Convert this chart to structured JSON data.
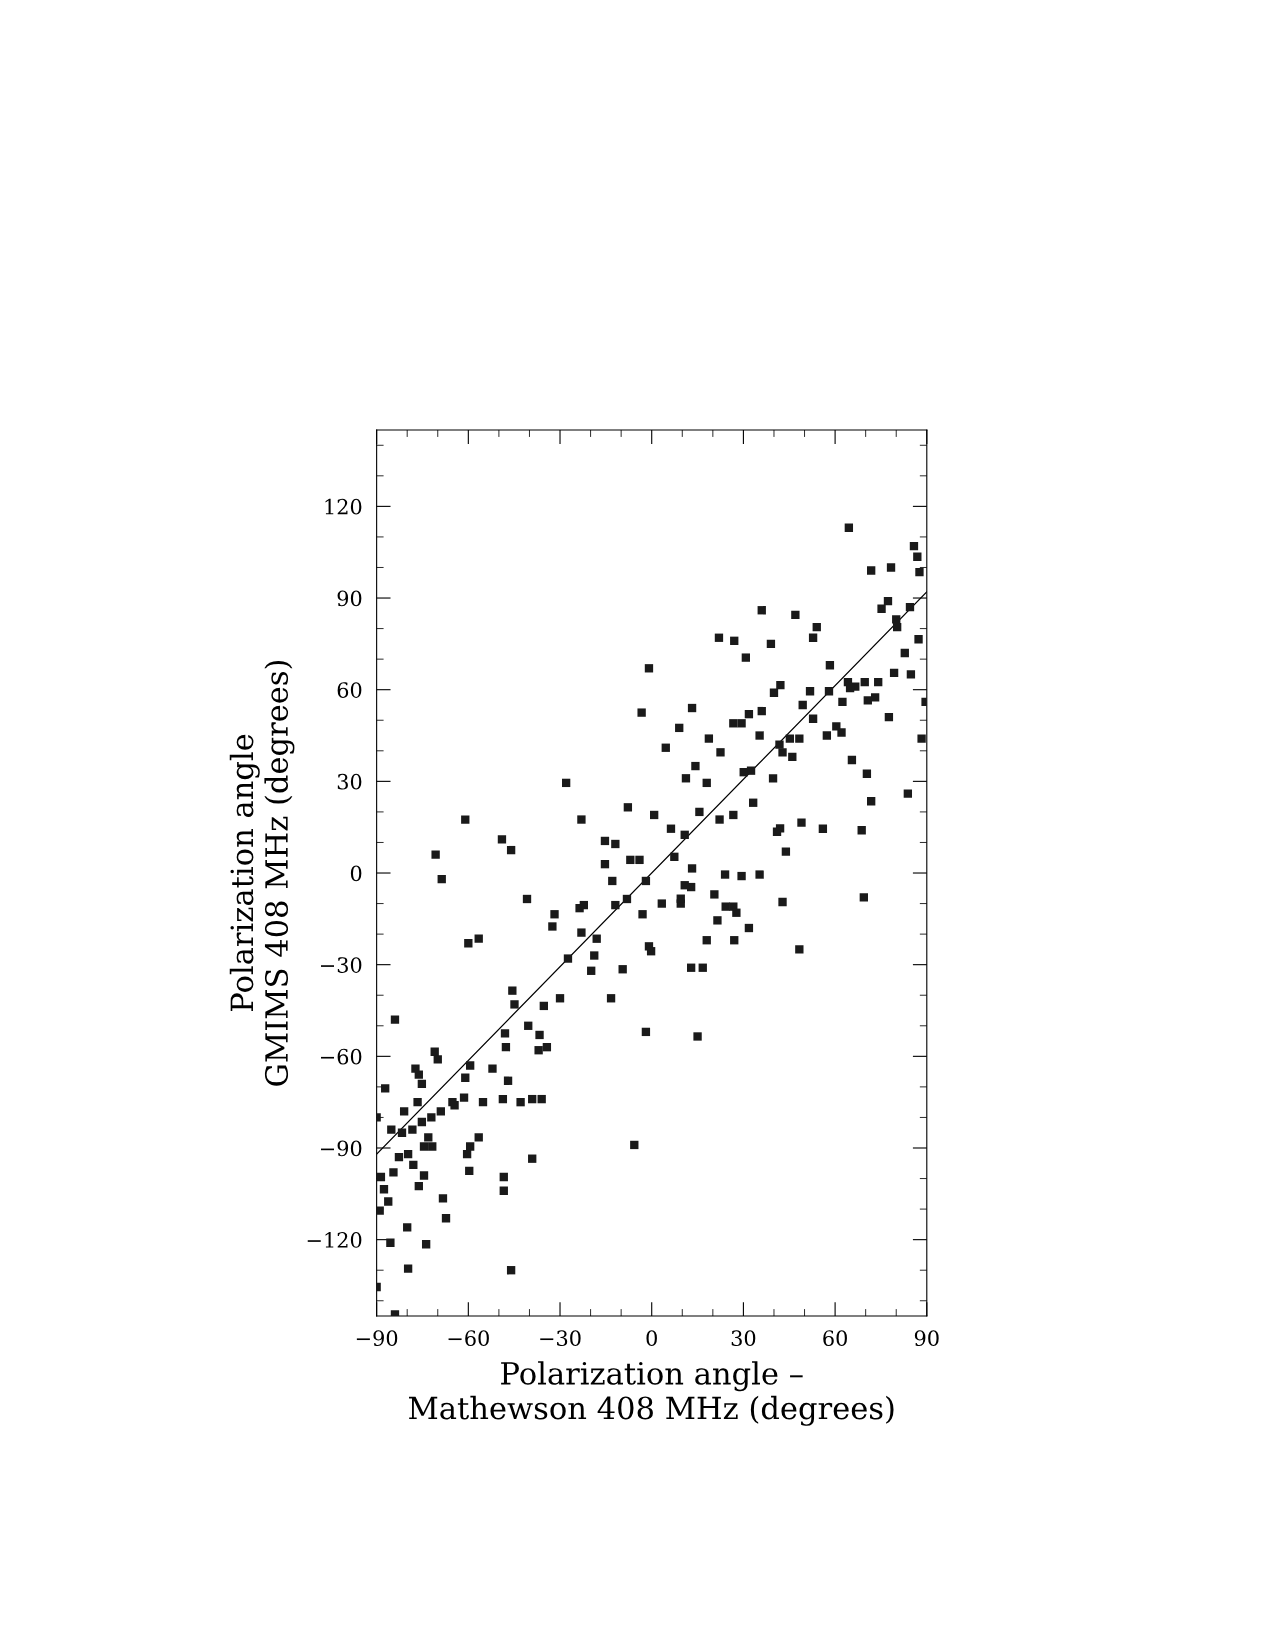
{
  "chart_data": {
    "type": "scatter",
    "xlabel": "Polarization angle –\nMathewson 408 MHz (degrees)",
    "ylabel": "Polarization angle\nGMIMS 408 MHz (degrees)",
    "xlim": [
      -90,
      90
    ],
    "ylim": [
      -145,
      145
    ],
    "xticks": [
      {
        "value": -90,
        "label": "−90"
      },
      {
        "value": -60,
        "label": "−60"
      },
      {
        "value": -30,
        "label": "−30"
      },
      0,
      30,
      60,
      90
    ],
    "yticks": [
      {
        "value": -120,
        "label": "−120"
      },
      {
        "value": -90,
        "label": "−90"
      },
      {
        "value": -60,
        "label": "−60"
      },
      {
        "value": -30,
        "label": "−30"
      },
      0,
      30,
      60,
      90,
      120
    ],
    "grid": false,
    "series": [
      {
        "color": "#1a1a1a",
        "marker": "square",
        "x": [
          64.5,
          -90,
          -84,
          -84,
          -70.7,
          -68.7,
          -61,
          -60,
          -56.6,
          -49,
          -46,
          -46,
          -40.8,
          -28,
          -23,
          -3.3,
          -0.9,
          -5.7,
          -1.9,
          15,
          48.3,
          42.8,
          43.9,
          56,
          69.4,
          68.7,
          71.8,
          83.8,
          88.3,
          89.6,
          86.9,
          78.3,
          71.8,
          36,
          47,
          22,
          27,
          39,
          54,
          58.3,
          30.8,
          13.2,
          4.6,
          9,
          22.5,
          29.4,
          39.7,
          49,
          41,
          31.8,
          21.5,
          12.9,
          16.7,
          24.2,
          24,
          29.4,
          9.5,
          3.3,
          -3,
          -8.1,
          -15.3,
          -11.9,
          -7.8,
          0.8,
          6.3,
          10.8,
          15.6,
          22.2,
          26.7,
          33.2,
          11.2,
          14.3,
          18,
          18.7,
          32.5,
          35.3,
          41.8,
          48.3,
          52.8,
          57.3,
          62.1,
          65.5,
          66.6,
          69.7,
          74.1,
          79.3,
          84.8,
          80.3,
          84.5,
          60.4,
          46,
          -9.5,
          -13.3,
          -19.8,
          -18,
          -23.6,
          -31.8,
          -32.5,
          -27.4,
          -30,
          -35.3,
          -36.7,
          -37,
          -34.3,
          -40.4,
          -44.9,
          -45.6,
          -48,
          -47.7,
          -52.1,
          -47,
          -48.7,
          -42.9,
          -39.1,
          -36,
          -48.4,
          -48.4,
          -39.1,
          -55.2,
          -56.6,
          -59.4,
          -60.4,
          -59.7,
          -61.4,
          -65.2,
          -69,
          -72.1,
          -68.3,
          -67.3,
          -73.8,
          -74.5,
          -76.2,
          -79.7,
          -80,
          -85.5,
          -86.2,
          -87.6,
          -88.6,
          -84.5,
          -82.7,
          -81.7,
          -78.3,
          -75.2,
          -73.1,
          -71.8,
          -79.7,
          -78,
          -74.5,
          -81,
          -76.6,
          -77.3,
          -76.2,
          -75.2,
          -71,
          -70,
          -87.2,
          -90,
          -85.2,
          -89,
          -59.4,
          -61,
          -64.5,
          -23,
          -22.2,
          -15.3,
          -12.9,
          -18.8,
          -11.9,
          -7,
          -4,
          -1.9,
          -0.9,
          -0.2,
          7.4,
          10.8,
          12.9,
          9.5,
          13.2,
          18,
          20.5,
          27,
          26.7,
          27.7,
          35.3,
          42,
          30.1,
          26.7,
          31.8,
          36,
          40,
          42.1,
          42.8,
          45.2,
          51.8,
          49.4,
          52.8,
          58,
          64.2,
          64.9,
          62.4,
          70.7,
          73.1,
          70.4,
          75.2,
          77.3,
          80,
          77.6,
          87.6,
          85.8,
          87.3,
          82.8
        ],
        "values": [
          113,
          -135.5,
          -144.5,
          -48,
          6,
          -2,
          17.5,
          -23,
          -21.5,
          11,
          7.5,
          -130,
          -8.5,
          29.5,
          17.5,
          52.5,
          67,
          -89,
          -52,
          -53.5,
          -25,
          -9.5,
          7,
          14.5,
          -8,
          14,
          23.5,
          26,
          44,
          56,
          103.5,
          100,
          99,
          86,
          84.5,
          77,
          76,
          75,
          80.5,
          68,
          70.5,
          54,
          41,
          47.5,
          39.5,
          49,
          31,
          16.5,
          13.5,
          -18,
          -15.5,
          -31,
          -31,
          -11,
          -0.5,
          -1,
          -10,
          -10,
          -13.5,
          -8.5,
          10.5,
          9.5,
          21.5,
          19,
          14.5,
          12.5,
          20,
          17.5,
          19,
          23,
          31,
          35,
          29.5,
          44,
          33.5,
          45,
          42,
          44,
          50.5,
          45,
          46,
          37,
          61,
          62.5,
          62.5,
          65.5,
          65,
          80.5,
          87,
          48,
          38,
          -31.5,
          -41,
          -32,
          -21.5,
          -11.5,
          -13.5,
          -17.5,
          -28,
          -41,
          -43.5,
          -53,
          -58,
          -57,
          -50,
          -43,
          -38.5,
          -52.5,
          -57,
          -64,
          -68,
          -74,
          -75,
          -74,
          -74,
          -99.5,
          -104,
          -93.5,
          -75,
          -86.5,
          -89.5,
          -92,
          -97.5,
          -73.5,
          -75,
          -78,
          -80,
          -106.5,
          -113,
          -121.5,
          -99,
          -102.5,
          -129.5,
          -116,
          -121,
          -107.5,
          -103.5,
          -99.5,
          -98,
          -93,
          -85,
          -84,
          -81.5,
          -86.5,
          -89.5,
          -92,
          -95.5,
          -89.5,
          -78,
          -75,
          -64,
          -66,
          -69,
          -58.5,
          -61,
          -70.5,
          -80,
          -84,
          -110.5,
          -63,
          -67,
          -76,
          -19.5,
          -10.5,
          2.9,
          -2.6,
          -27,
          -10.5,
          4.3,
          4.3,
          -2.6,
          -24,
          -25.6,
          5.3,
          -4,
          -4.6,
          -8.4,
          1.5,
          -22,
          -7,
          -22,
          -11,
          -13,
          -0.5,
          14.6,
          33,
          49,
          52,
          53,
          59,
          61.5,
          39.5,
          44,
          59.5,
          55,
          77,
          59.5,
          62.5,
          60.5,
          56,
          56.5,
          57.5,
          32.5,
          86.5,
          89,
          83,
          51,
          98.5,
          107,
          76.5,
          72
        ]
      },
      {
        "type": "line",
        "color": "#000000",
        "line_style": "solid",
        "x": [
          -90,
          90
        ],
        "values": [
          -92,
          92
        ]
      }
    ]
  }
}
